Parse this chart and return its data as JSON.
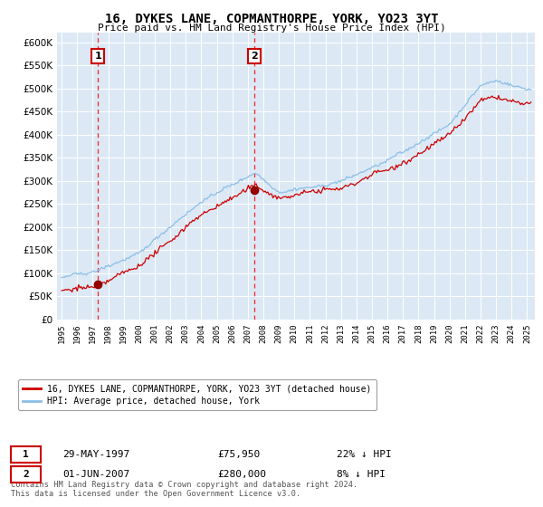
{
  "title": "16, DYKES LANE, COPMANTHORPE, YORK, YO23 3YT",
  "subtitle": "Price paid vs. HM Land Registry's House Price Index (HPI)",
  "legend_label_red": "16, DYKES LANE, COPMANTHORPE, YORK, YO23 3YT (detached house)",
  "legend_label_blue": "HPI: Average price, detached house, York",
  "marker1_date": "29-MAY-1997",
  "marker1_price": 75950,
  "marker1_label": "22% ↓ HPI",
  "marker2_date": "01-JUN-2007",
  "marker2_price": 280000,
  "marker2_label": "8% ↓ HPI",
  "footer": "Contains HM Land Registry data © Crown copyright and database right 2024.\nThis data is licensed under the Open Government Licence v3.0.",
  "ylim": [
    0,
    620000
  ],
  "background_color": "#dce9f5",
  "grid_color": "#ffffff"
}
